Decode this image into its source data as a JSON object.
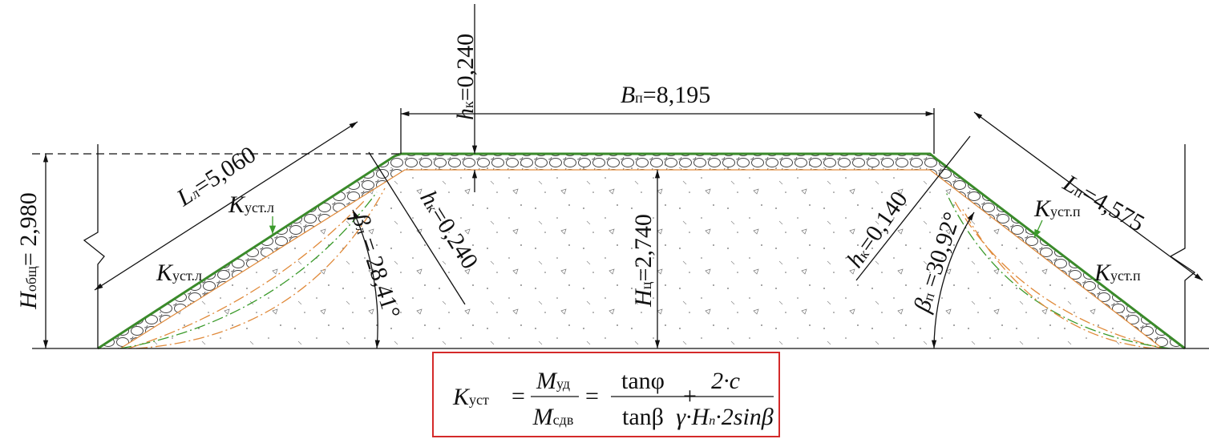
{
  "labels": {
    "hk_top": {
      "symbol": "h",
      "sub": "к",
      "value": "=0,240"
    },
    "b_p": {
      "symbol": "B",
      "sub": "п",
      "value": "=8,195"
    },
    "l_l": {
      "symbol": "L",
      "sub": "л",
      "value": "=5,060"
    },
    "k_l_upper": {
      "symbol": "K",
      "sub": "уст.л"
    },
    "k_l_lower": {
      "symbol": "K",
      "sub": "уст.л"
    },
    "h_total": {
      "symbol": "H",
      "sub": "общ",
      "value": "= 2,980"
    },
    "beta_l": {
      "symbol": "β",
      "sub": "л",
      "value": " = 28,41°"
    },
    "hk_left": {
      "symbol": "h",
      "sub": "к",
      "value": "=0,240"
    },
    "h_c": {
      "symbol": "H",
      "sub": "ц",
      "value": "=2,740"
    },
    "hk_right": {
      "symbol": "h",
      "sub": "к",
      "value": "=0,140"
    },
    "beta_p": {
      "symbol": "β",
      "sub": "п",
      "value": " =30,92°"
    },
    "l_p": {
      "symbol": "L",
      "sub": "п",
      "value": "=4,575"
    },
    "k_p_upper": {
      "symbol": "K",
      "sub": "уст.п"
    },
    "k_p_lower": {
      "symbol": "K",
      "sub": "уст.п"
    }
  },
  "formula": {
    "lhs_symbol": "K",
    "lhs_sub": "уст",
    "eq1": "=",
    "m_num": "M",
    "m_num_sub": "уд",
    "m_den": "M",
    "m_den_sub": "сдв",
    "eq2": "=",
    "t_num": "tanφ",
    "t_den": "tanβ",
    "plus": "+",
    "c_num": "2·c",
    "c_den_a": "γ·H",
    "c_den_sub": "п",
    "c_den_b": "·2sinβ"
  }
}
